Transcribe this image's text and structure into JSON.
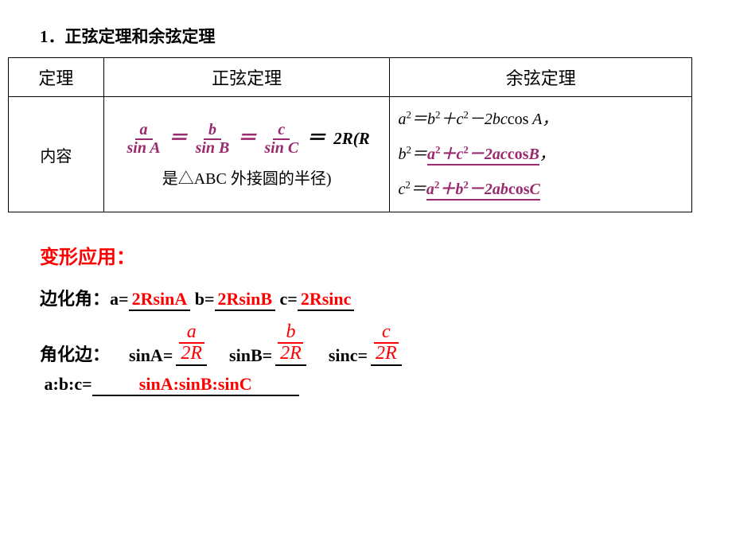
{
  "colors": {
    "text": "#000000",
    "accent_purple": "#9a2a6e",
    "accent_red": "#ff0000",
    "background": "#ffffff",
    "table_border": "#000000"
  },
  "typography": {
    "base_family": "SimSun, Times New Roman, serif",
    "math_family": "Times New Roman, serif",
    "title_size_pt": 16,
    "body_size_pt": 15
  },
  "title": "1．正弦定理和余弦定理",
  "table": {
    "headers": {
      "c1": "定理",
      "c2": "正弦定理",
      "c3": "余弦定理"
    },
    "row_label": "内容",
    "sine": {
      "fractions": [
        {
          "num": "a",
          "den": "sin A"
        },
        {
          "num": "b",
          "den": "sin B"
        },
        {
          "num": "c",
          "den": "sin C"
        }
      ],
      "eq": "＝",
      "tail": "2R(R",
      "line2": "是△ABC 外接圆的半径)"
    },
    "cosine": {
      "l1_lhs": "a²＝b²＋c²－2bccos A，",
      "l2_lhs": "b²＝",
      "l2_rhs": "a²＋c²－2accosB",
      "l2_tail": "，",
      "l3_lhs": "c²＝",
      "l3_rhs": "a²＋b²－2abcosC"
    }
  },
  "bianxing": "变形应用：",
  "edge_to_angle": {
    "label": "边化角：",
    "a_lbl": "a=",
    "a_val": "2RsinA",
    "b_lbl": " b=",
    "b_val": "2RsinB",
    "c_lbl": " c=",
    "c_val": "2Rsinc"
  },
  "angle_to_edge": {
    "label": "角化边：",
    "items": [
      {
        "lhs": "sinA=",
        "num": "a",
        "den": "2R"
      },
      {
        "lhs": "sinB=",
        "num": "b",
        "den": "2R"
      },
      {
        "lhs": "sinc=",
        "num": "c",
        "den": "2R"
      }
    ]
  },
  "ratio": {
    "lhs": "a:b:c=",
    "rhs": "sinA:sinB:sinC"
  }
}
